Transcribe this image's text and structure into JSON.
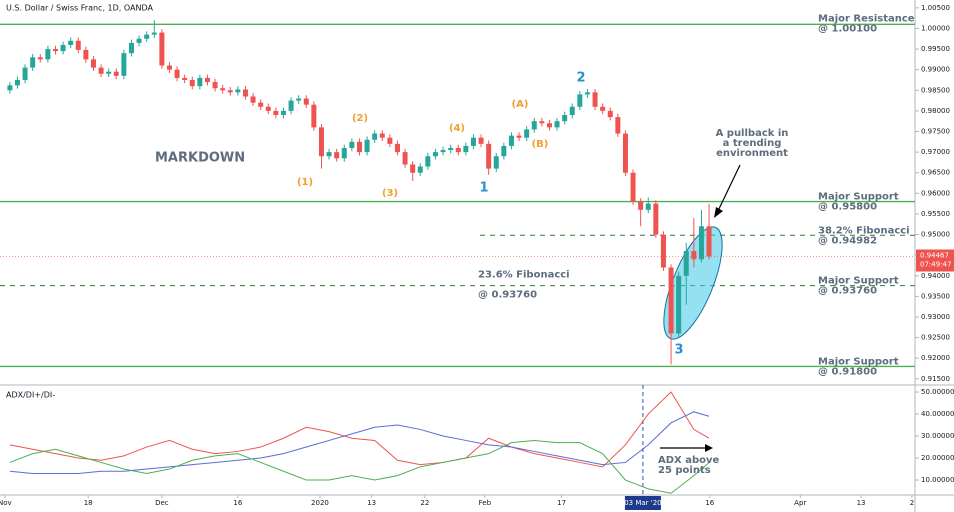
{
  "chart_data": {
    "type": "candlestick",
    "title": "U.S. Dollar / Swiss Franc, 1D, OANDA",
    "ylim": [
      0.9135,
      1.0069
    ],
    "yticks": [
      {
        "value": 1.005,
        "label": "1.00500"
      },
      {
        "value": 1.0,
        "label": "1.00000"
      },
      {
        "value": 0.995,
        "label": "0.99500"
      },
      {
        "value": 0.99,
        "label": "0.99000"
      },
      {
        "value": 0.985,
        "label": "0.98500"
      },
      {
        "value": 0.98,
        "label": "0.98000"
      },
      {
        "value": 0.975,
        "label": "0.97500"
      },
      {
        "value": 0.97,
        "label": "0.97000"
      },
      {
        "value": 0.965,
        "label": "0.96500"
      },
      {
        "value": 0.96,
        "label": "0.96000"
      },
      {
        "value": 0.955,
        "label": "0.95500"
      },
      {
        "value": 0.95,
        "label": "0.95000"
      },
      {
        "value": 0.945,
        "label": "0.94500"
      },
      {
        "value": 0.94,
        "label": "0.94000"
      },
      {
        "value": 0.935,
        "label": "0.93500"
      },
      {
        "value": 0.93,
        "label": "0.93000"
      },
      {
        "value": 0.925,
        "label": "0.92500"
      },
      {
        "value": 0.92,
        "label": "0.92000"
      },
      {
        "value": 0.915,
        "label": "0.91500"
      }
    ],
    "xlim": [
      -1.3,
      119.1
    ],
    "xticks": [
      {
        "value": -0.66,
        "label": "Nov"
      },
      {
        "value": 10.3,
        "label": "18"
      },
      {
        "value": 20,
        "label": "Dec"
      },
      {
        "value": 30,
        "label": "16"
      },
      {
        "value": 40.8,
        "label": "2020"
      },
      {
        "value": 47.6,
        "label": "13"
      },
      {
        "value": 54.6,
        "label": "22"
      },
      {
        "value": 62.5,
        "label": "Feb"
      },
      {
        "value": 72.6,
        "label": "17"
      },
      {
        "value": 83.3,
        "label": "03 Mar '20"
      },
      {
        "value": 92.1,
        "label": "16"
      },
      {
        "value": 104,
        "label": "Apr"
      },
      {
        "value": 112,
        "label": "13"
      },
      {
        "value": 118.7,
        "label": "2"
      }
    ],
    "up_color": "#26a69a",
    "down_color": "#ef5350",
    "ohlc": [
      [
        0.985,
        0.987,
        0.9842,
        0.9862
      ],
      [
        0.9862,
        0.9883,
        0.9854,
        0.9875
      ],
      [
        0.9875,
        0.9913,
        0.9867,
        0.9905
      ],
      [
        0.9905,
        0.9938,
        0.9897,
        0.993
      ],
      [
        0.993,
        0.9938,
        0.9917,
        0.9925
      ],
      [
        0.9925,
        0.9958,
        0.9917,
        0.995
      ],
      [
        0.995,
        0.9958,
        0.9937,
        0.9945
      ],
      [
        0.9945,
        0.9968,
        0.9937,
        0.996
      ],
      [
        0.996,
        0.9978,
        0.9952,
        0.997
      ],
      [
        0.997,
        0.9978,
        0.994,
        0.9948
      ],
      [
        0.9948,
        0.9956,
        0.9917,
        0.9925
      ],
      [
        0.9925,
        0.9933,
        0.9897,
        0.9905
      ],
      [
        0.9905,
        0.9913,
        0.9882,
        0.989
      ],
      [
        0.989,
        0.9903,
        0.9882,
        0.9895
      ],
      [
        0.9895,
        0.9903,
        0.9877,
        0.9885
      ],
      [
        0.9885,
        0.9948,
        0.9877,
        0.994
      ],
      [
        0.994,
        0.9973,
        0.9932,
        0.9965
      ],
      [
        0.9965,
        0.9983,
        0.9957,
        0.9975
      ],
      [
        0.9975,
        0.9993,
        0.9967,
        0.9985
      ],
      [
        0.9985,
        1.002,
        0.9977,
        0.999
      ],
      [
        0.999,
        0.9998,
        0.9902,
        0.991
      ],
      [
        0.991,
        0.9918,
        0.9892,
        0.99
      ],
      [
        0.99,
        0.9908,
        0.9872,
        0.988
      ],
      [
        0.988,
        0.9888,
        0.9867,
        0.9875
      ],
      [
        0.9875,
        0.9883,
        0.9852,
        0.986
      ],
      [
        0.986,
        0.9888,
        0.9852,
        0.988
      ],
      [
        0.988,
        0.9888,
        0.9862,
        0.987
      ],
      [
        0.987,
        0.9878,
        0.9847,
        0.9855
      ],
      [
        0.9855,
        0.9863,
        0.9842,
        0.985
      ],
      [
        0.985,
        0.9858,
        0.9837,
        0.9845
      ],
      [
        0.9845,
        0.986,
        0.9837,
        0.9852
      ],
      [
        0.9852,
        0.986,
        0.9827,
        0.9835
      ],
      [
        0.9835,
        0.9843,
        0.9812,
        0.982
      ],
      [
        0.982,
        0.9828,
        0.9802,
        0.981
      ],
      [
        0.981,
        0.9818,
        0.9792,
        0.98
      ],
      [
        0.98,
        0.9808,
        0.9782,
        0.979
      ],
      [
        0.979,
        0.9808,
        0.9782,
        0.98
      ],
      [
        0.98,
        0.9833,
        0.9792,
        0.9825
      ],
      [
        0.9825,
        0.9838,
        0.9817,
        0.983
      ],
      [
        0.983,
        0.9838,
        0.9807,
        0.9815
      ],
      [
        0.9815,
        0.9823,
        0.9752,
        0.976
      ],
      [
        0.976,
        0.9768,
        0.966,
        0.969
      ],
      [
        0.969,
        0.9708,
        0.9682,
        0.97
      ],
      [
        0.97,
        0.9708,
        0.9677,
        0.9685
      ],
      [
        0.9685,
        0.9718,
        0.9677,
        0.971
      ],
      [
        0.971,
        0.9733,
        0.9702,
        0.9725
      ],
      [
        0.9725,
        0.9733,
        0.9692,
        0.97
      ],
      [
        0.97,
        0.9738,
        0.9692,
        0.973
      ],
      [
        0.973,
        0.9753,
        0.9722,
        0.9745
      ],
      [
        0.9745,
        0.9753,
        0.9727,
        0.9735
      ],
      [
        0.9735,
        0.9743,
        0.9712,
        0.972
      ],
      [
        0.972,
        0.9728,
        0.9692,
        0.97
      ],
      [
        0.97,
        0.9708,
        0.9662,
        0.967
      ],
      [
        0.967,
        0.9678,
        0.963,
        0.965
      ],
      [
        0.965,
        0.9673,
        0.9642,
        0.9665
      ],
      [
        0.9665,
        0.9698,
        0.9657,
        0.969
      ],
      [
        0.969,
        0.9708,
        0.9682,
        0.97
      ],
      [
        0.97,
        0.9713,
        0.9692,
        0.9705
      ],
      [
        0.9705,
        0.9718,
        0.9697,
        0.971
      ],
      [
        0.971,
        0.9718,
        0.9692,
        0.97
      ],
      [
        0.97,
        0.9723,
        0.9692,
        0.9715
      ],
      [
        0.9715,
        0.9743,
        0.9707,
        0.9735
      ],
      [
        0.9735,
        0.9743,
        0.9712,
        0.972
      ],
      [
        0.972,
        0.9728,
        0.9645,
        0.966
      ],
      [
        0.966,
        0.9698,
        0.9652,
        0.969
      ],
      [
        0.969,
        0.9723,
        0.9682,
        0.9715
      ],
      [
        0.9715,
        0.9748,
        0.9707,
        0.974
      ],
      [
        0.974,
        0.9748,
        0.9727,
        0.9735
      ],
      [
        0.9735,
        0.9763,
        0.9727,
        0.9755
      ],
      [
        0.9755,
        0.9783,
        0.9747,
        0.9775
      ],
      [
        0.9775,
        0.9783,
        0.9762,
        0.977
      ],
      [
        0.977,
        0.9778,
        0.9752,
        0.976
      ],
      [
        0.976,
        0.9783,
        0.9752,
        0.9775
      ],
      [
        0.9775,
        0.9798,
        0.9767,
        0.979
      ],
      [
        0.979,
        0.9818,
        0.9782,
        0.981
      ],
      [
        0.981,
        0.9848,
        0.9802,
        0.984
      ],
      [
        0.984,
        0.9853,
        0.9832,
        0.9845
      ],
      [
        0.9845,
        0.9853,
        0.9802,
        0.981
      ],
      [
        0.981,
        0.9818,
        0.9792,
        0.98
      ],
      [
        0.98,
        0.9808,
        0.9777,
        0.9785
      ],
      [
        0.9785,
        0.9793,
        0.9737,
        0.9745
      ],
      [
        0.9745,
        0.9753,
        0.9642,
        0.965
      ],
      [
        0.965,
        0.9658,
        0.9572,
        0.958
      ],
      [
        0.958,
        0.9588,
        0.952,
        0.956
      ],
      [
        0.956,
        0.959,
        0.9552,
        0.9575
      ],
      [
        0.9575,
        0.9583,
        0.9492,
        0.95
      ],
      [
        0.95,
        0.9508,
        0.9412,
        0.942
      ],
      [
        0.942,
        0.9428,
        0.9185,
        0.926
      ],
      [
        0.926,
        0.941,
        0.9252,
        0.94
      ],
      [
        0.94,
        0.948,
        0.933,
        0.946
      ],
      [
        0.946,
        0.954,
        0.942,
        0.944
      ],
      [
        0.944,
        0.956,
        0.9432,
        0.952
      ],
      [
        0.952,
        0.9575,
        0.944,
        0.9447
      ]
    ],
    "last_price": {
      "value": 0.94467,
      "label": "0.94467"
    },
    "countdown": "07:49:47",
    "levels": [
      {
        "value": 1.001,
        "style": "solid",
        "texts": [
          "Major Resistance",
          "@ 1.00100"
        ]
      },
      {
        "value": 0.958,
        "style": "solid",
        "texts": [
          "Major Support",
          "@ 0.95800"
        ]
      },
      {
        "value": 0.94982,
        "style": "dashed",
        "texts": [
          "38.2% Fibonacci",
          "@ 0.94982"
        ]
      },
      {
        "value": 0.9376,
        "style": "dashed",
        "texts": [
          "Major Support",
          "@ 0.93760"
        ]
      },
      {
        "value": 0.918,
        "style": "solid",
        "texts": [
          "Major  Support",
          "@ 0.91800"
        ]
      }
    ],
    "fib_note": [
      "23.6% Fibonacci",
      "@ 0.93760"
    ],
    "markdown": "MARKDOWN",
    "waves": [
      {
        "text": "(1)",
        "color": "#f0a030"
      },
      {
        "text": "(2)",
        "color": "#f0a030"
      },
      {
        "text": "(3)",
        "color": "#f0a030"
      },
      {
        "text": "(4)",
        "color": "#f0a030"
      },
      {
        "text": "1",
        "color": "#2a8fd0"
      },
      {
        "text": "(A)",
        "color": "#f0a030"
      },
      {
        "text": "(B)",
        "color": "#f0a030"
      },
      {
        "text": "2",
        "color": "#2a8fd0"
      },
      {
        "text": "3",
        "color": "#2a8fd0"
      }
    ],
    "pullback_note": [
      "A pullback in",
      "a trending",
      "environment"
    ],
    "indicator": {
      "title": "ADX/DI+/DI-",
      "ylim": [
        3.2,
        53.2
      ],
      "yticks": [
        {
          "value": 50,
          "label": "50.00000"
        },
        {
          "value": 40,
          "label": "40.00000"
        },
        {
          "value": 30,
          "label": "30.00000"
        },
        {
          "value": 20,
          "label": "20.00000"
        },
        {
          "value": 10,
          "label": "10.00000"
        }
      ],
      "x": [
        0,
        3,
        6,
        9,
        12,
        15,
        18,
        21,
        24,
        27,
        30,
        33,
        36,
        39,
        42,
        45,
        48,
        51,
        54,
        57,
        60,
        63,
        66,
        69,
        72,
        75,
        78,
        81,
        84,
        87,
        90,
        92
      ],
      "series": [
        {
          "color": "#ef5350",
          "values": [
            26,
            24,
            22,
            20,
            19,
            21,
            25,
            28,
            24,
            22,
            23,
            25,
            29,
            34,
            32,
            29,
            28,
            19,
            17,
            18,
            20,
            29,
            25,
            22,
            20,
            18,
            16,
            26,
            40,
            50,
            33,
            29
          ]
        },
        {
          "color": "#5b6bd6",
          "values": [
            14,
            13,
            13,
            13,
            14,
            14,
            15,
            16,
            17,
            18,
            19,
            20,
            22,
            25,
            28,
            31,
            34,
            35,
            33,
            30,
            28,
            26,
            25,
            23,
            21,
            19,
            17,
            18,
            26,
            36,
            41,
            39
          ]
        },
        {
          "color": "#4caf50",
          "values": [
            18,
            22,
            24,
            21,
            18,
            15,
            13,
            15,
            19,
            21,
            22,
            18,
            14,
            10,
            10,
            12,
            10,
            12,
            16,
            18,
            20,
            22,
            27,
            28,
            27,
            27,
            22,
            10,
            6,
            4,
            12,
            18
          ]
        }
      ],
      "note": [
        "ADX above",
        "25 points"
      ]
    }
  }
}
